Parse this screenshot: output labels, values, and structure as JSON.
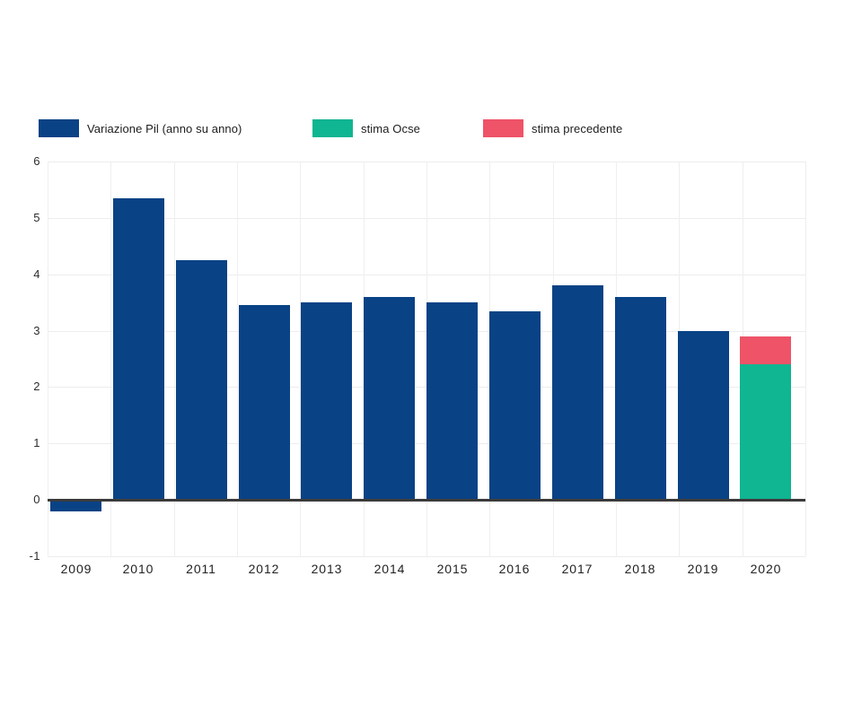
{
  "colors": {
    "background": "#ffffff",
    "grid": "#ededed",
    "zero_line": "#3b3b3b",
    "tick_text": "#2d2d2d",
    "legend_text": "#1c1c1c"
  },
  "legend": {
    "items": [
      {
        "label": "Variazione Pil (anno su anno)",
        "color": "#094285"
      },
      {
        "label": "stima Ocse",
        "color": "#10b592"
      },
      {
        "label": "stima precedente",
        "color": "#ef5368"
      }
    ]
  },
  "chart_data": {
    "type": "bar",
    "title": "",
    "xlabel": "",
    "ylabel": "",
    "categories": [
      "2009",
      "2010",
      "2011",
      "2012",
      "2013",
      "2014",
      "2015",
      "2016",
      "2017",
      "2018",
      "2019",
      "2020"
    ],
    "series": [
      {
        "name": "Variazione Pil (anno su anno)",
        "color": "#094285",
        "values": [
          -0.2,
          5.35,
          4.25,
          3.45,
          3.5,
          3.6,
          3.5,
          3.35,
          3.8,
          3.6,
          3.0,
          null
        ]
      },
      {
        "name": "stima Ocse",
        "color": "#10b592",
        "values": [
          null,
          null,
          null,
          null,
          null,
          null,
          null,
          null,
          null,
          null,
          null,
          2.4
        ]
      },
      {
        "name": "stima precedente",
        "color": "#ef5368",
        "values": [
          null,
          null,
          null,
          null,
          null,
          null,
          null,
          null,
          null,
          null,
          null,
          2.9
        ],
        "render_note": "drawn as a segment stacked from the stima Ocse value (2.4) up to 2.9 on the 2020 bar"
      }
    ],
    "yticks": [
      6,
      5,
      4,
      3,
      2,
      1,
      0,
      -1
    ],
    "ylim": [
      -1,
      6
    ],
    "grid": true,
    "zero_line": true,
    "legend_position": "top"
  }
}
